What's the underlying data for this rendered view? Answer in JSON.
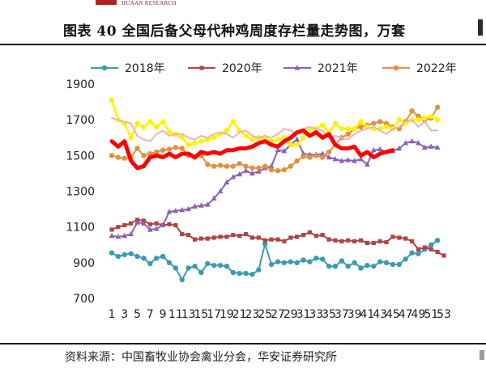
{
  "header": {
    "brand": "HUAAN RESEARCH",
    "title": "图表 40  全国后备父母代种鸡周度存栏量走势图，万套"
  },
  "footer": {
    "source": "资料来源：中国畜牧业协会禽业分会，华安证券研究所"
  },
  "chart_data": {
    "type": "line",
    "title": "",
    "xlabel": "",
    "ylabel": "",
    "ylim": [
      700,
      1900
    ],
    "yticks": [
      700,
      900,
      1100,
      1300,
      1500,
      1700,
      1900
    ],
    "xlim": [
      1,
      53
    ],
    "xtick_labels": [
      "1",
      "3",
      "5",
      "7",
      "9",
      "11",
      "13",
      "15",
      "17",
      "19",
      "21",
      "23",
      "25",
      "27",
      "29",
      "31",
      "33",
      "35",
      "37",
      "39",
      "41",
      "43",
      "45",
      "47",
      "49",
      "51",
      "53"
    ],
    "grid": false,
    "legend_position": "top",
    "series": [
      {
        "name": "2018年",
        "color": "#3a9bb0",
        "marker": "circle",
        "marker_color": "#3a9bb0",
        "x": [
          1,
          2,
          3,
          4,
          5,
          6,
          7,
          8,
          9,
          10,
          11,
          12,
          13,
          14,
          15,
          16,
          17,
          18,
          19,
          20,
          21,
          22,
          23,
          24,
          25,
          26,
          27,
          28,
          29,
          30,
          31,
          32,
          33,
          34,
          35,
          36,
          37,
          38,
          39,
          40,
          41,
          42,
          43,
          44,
          45,
          46,
          47,
          48,
          49,
          50,
          51,
          52
        ],
        "values": [
          955,
          935,
          945,
          950,
          935,
          925,
          895,
          925,
          935,
          900,
          870,
          805,
          870,
          880,
          845,
          895,
          885,
          885,
          880,
          845,
          840,
          840,
          835,
          860,
          1005,
          890,
          905,
          900,
          905,
          900,
          915,
          905,
          925,
          920,
          880,
          880,
          910,
          880,
          900,
          870,
          885,
          880,
          905,
          900,
          890,
          890,
          920,
          955,
          950,
          975,
          1000,
          1025
        ]
      },
      {
        "name": "2020年",
        "color": "#b04545",
        "marker": "square",
        "marker_color": "#b04545",
        "x": [
          1,
          2,
          3,
          4,
          5,
          6,
          7,
          8,
          9,
          10,
          11,
          12,
          13,
          14,
          15,
          16,
          17,
          18,
          19,
          20,
          21,
          22,
          23,
          24,
          25,
          26,
          27,
          28,
          29,
          30,
          31,
          32,
          33,
          34,
          35,
          36,
          37,
          38,
          39,
          40,
          41,
          42,
          43,
          44,
          45,
          46,
          47,
          48,
          49,
          50,
          51,
          52,
          53
        ],
        "values": [
          1085,
          1100,
          1110,
          1120,
          1140,
          1135,
          1115,
          1120,
          1110,
          1115,
          1110,
          1060,
          1055,
          1030,
          1035,
          1035,
          1040,
          1045,
          1045,
          1055,
          1050,
          1060,
          1040,
          1040,
          1025,
          1030,
          1030,
          1020,
          1040,
          1045,
          1055,
          1070,
          1050,
          1055,
          1030,
          1025,
          1020,
          1025,
          1020,
          1025,
          1010,
          1010,
          1020,
          1015,
          1045,
          1040,
          1035,
          1020,
          975,
          985,
          975,
          960,
          940
        ]
      },
      {
        "name": "2021年",
        "color": "#8a62b5",
        "marker": "triangle",
        "marker_color": "#8a62b5",
        "x": [
          1,
          2,
          3,
          4,
          5,
          6,
          7,
          8,
          9,
          10,
          11,
          12,
          13,
          14,
          15,
          16,
          17,
          18,
          19,
          20,
          21,
          22,
          23,
          24,
          25,
          26,
          27,
          28,
          29,
          30,
          31,
          32,
          33,
          34,
          35,
          36,
          37,
          38,
          39,
          40,
          41,
          42,
          43,
          44,
          45,
          46,
          47,
          48,
          49,
          50,
          51,
          52
        ],
        "values": [
          1050,
          1045,
          1050,
          1060,
          1125,
          1120,
          1085,
          1090,
          1110,
          1185,
          1190,
          1195,
          1200,
          1215,
          1220,
          1225,
          1260,
          1300,
          1350,
          1380,
          1395,
          1415,
          1400,
          1410,
          1430,
          1440,
          1530,
          1525,
          1560,
          1590,
          1510,
          1505,
          1505,
          1510,
          1490,
          1480,
          1470,
          1475,
          1470,
          1480,
          1450,
          1530,
          1535,
          1520,
          1525,
          1540,
          1570,
          1580,
          1570,
          1545,
          1550,
          1545
        ]
      },
      {
        "name": "2022年",
        "color": "#e09040",
        "marker": "circle",
        "marker_color": "#e09040",
        "x": [
          1,
          2,
          3,
          4,
          5,
          6,
          7,
          8,
          9,
          10,
          11,
          12,
          13,
          14,
          15,
          16,
          17,
          18,
          19,
          20,
          21,
          22,
          23,
          24,
          25,
          26,
          27,
          28,
          29,
          30,
          31,
          32,
          33,
          34,
          35,
          36,
          37,
          38,
          39,
          40,
          41,
          42,
          43,
          44,
          45,
          46,
          47,
          48,
          49,
          50,
          51,
          52
        ],
        "values": [
          1500,
          1490,
          1485,
          1490,
          1540,
          1500,
          1510,
          1520,
          1530,
          1535,
          1545,
          1540,
          1500,
          1490,
          1500,
          1450,
          1440,
          1445,
          1440,
          1440,
          1455,
          1440,
          1430,
          1430,
          1440,
          1420,
          1415,
          1420,
          1440,
          1470,
          1495,
          1490,
          1500,
          1490,
          1520,
          1560,
          1600,
          1620,
          1650,
          1660,
          1670,
          1680,
          1690,
          1680,
          1660,
          1650,
          1690,
          1750,
          1720,
          1700,
          1710,
          1770
        ]
      },
      {
        "name": "",
        "color": "#fff200",
        "marker": "circle",
        "marker_color": "#fff200",
        "x": [
          1,
          2,
          3,
          4,
          5,
          6,
          7,
          8,
          9,
          10,
          11,
          12,
          13,
          14,
          15,
          16,
          17,
          18,
          19,
          20,
          21,
          22,
          23,
          24,
          25,
          26,
          27,
          28,
          29,
          30,
          31,
          32,
          33,
          34,
          35,
          36,
          37,
          38,
          39,
          40,
          41,
          42,
          43,
          44,
          45,
          46,
          47,
          48,
          49,
          50,
          51,
          52
        ],
        "values": [
          1810,
          1700,
          1680,
          1600,
          1680,
          1660,
          1690,
          1660,
          1690,
          1630,
          1620,
          1600,
          1560,
          1570,
          1580,
          1590,
          1600,
          1620,
          1640,
          1690,
          1640,
          1610,
          1590,
          1600,
          1600,
          1580,
          1590,
          1600,
          1560,
          1560,
          1600,
          1650,
          1650,
          1670,
          1630,
          1680,
          1650,
          1650,
          1650,
          1690,
          1660,
          1650,
          1650,
          1660,
          1650,
          1700,
          1680,
          1700,
          1700,
          1710,
          1720,
          1700
        ]
      },
      {
        "name": "",
        "color": "#e8b4b8",
        "marker": "none",
        "marker_color": "#e8b4b8",
        "x": [
          1,
          2,
          3,
          4,
          5,
          6,
          7,
          8,
          9,
          10,
          11,
          12,
          13,
          14,
          15,
          16,
          17,
          18,
          19,
          20,
          21,
          22,
          23,
          24,
          25,
          26,
          27,
          28,
          29,
          30,
          31,
          32,
          33,
          34,
          35,
          36,
          37,
          38,
          39,
          40,
          41,
          42,
          43,
          44,
          45,
          46,
          47,
          48,
          49,
          50,
          51,
          52
        ],
        "values": [
          1710,
          1700,
          1690,
          1680,
          1610,
          1590,
          1580,
          1620,
          1640,
          1610,
          1620,
          1620,
          1600,
          1590,
          1610,
          1600,
          1620,
          1630,
          1620,
          1600,
          1630,
          1640,
          1610,
          1600,
          1610,
          1600,
          1620,
          1650,
          1640,
          1620,
          1650,
          1660,
          1650,
          1640,
          1600,
          1610,
          1600,
          1590,
          1620,
          1640,
          1650,
          1660,
          1640,
          1620,
          1650,
          1660,
          1690,
          1700,
          1660,
          1690,
          1640,
          1640
        ]
      },
      {
        "name": "",
        "color": "#ff0000",
        "marker": "none",
        "marker_color": "#ff0000",
        "x": [
          1,
          2,
          3,
          4,
          5,
          6,
          7,
          8,
          9,
          10,
          11,
          12,
          13,
          14,
          15,
          16,
          17,
          18,
          19,
          20,
          21,
          22,
          23,
          24,
          25,
          26,
          27,
          28,
          29,
          30,
          31,
          32,
          33,
          34,
          35,
          36,
          37,
          38,
          39,
          40,
          41,
          42,
          43,
          44,
          45
        ],
        "values": [
          1580,
          1550,
          1580,
          1470,
          1430,
          1440,
          1490,
          1500,
          1490,
          1510,
          1490,
          1510,
          1510,
          1490,
          1520,
          1510,
          1520,
          1510,
          1530,
          1530,
          1540,
          1540,
          1550,
          1570,
          1580,
          1560,
          1550,
          1580,
          1600,
          1630,
          1640,
          1610,
          1630,
          1600,
          1620,
          1560,
          1540,
          1540,
          1550,
          1500,
          1520,
          1490,
          1510,
          1520,
          1530
        ]
      }
    ]
  }
}
